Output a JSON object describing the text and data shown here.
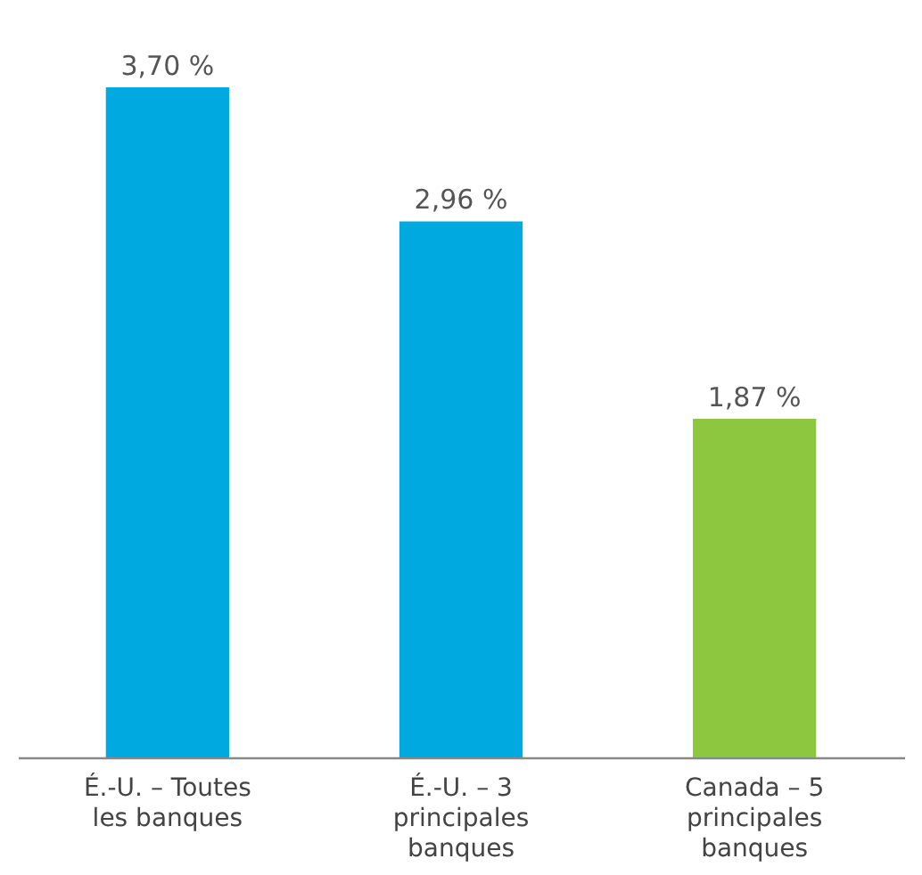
{
  "chart_data": {
    "type": "bar",
    "categories": [
      "É.-U. – Toutes les banques",
      "É.-U. – 3 principales banques",
      "Canada – 5 principales banques"
    ],
    "values": [
      3.7,
      2.96,
      1.87
    ],
    "colors": [
      "#00a9e0",
      "#00a9e0",
      "#8dc63f"
    ],
    "value_labels": [
      "3,70 %",
      "2,96 %",
      "1,87 %"
    ]
  }
}
